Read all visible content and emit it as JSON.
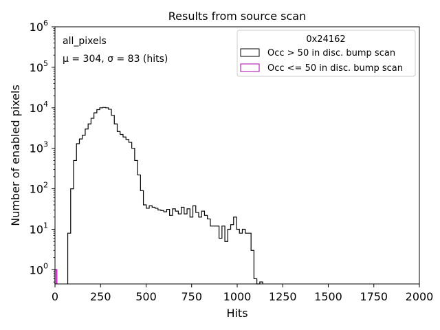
{
  "chart_data": {
    "type": "histogram",
    "title": "Results from source scan",
    "xlabel": "Hits",
    "ylabel": "Number of enabled pixels",
    "xlim": [
      0,
      2000
    ],
    "ylim_log10": [
      -0.35,
      6
    ],
    "yscale": "log",
    "x_ticks": [
      0,
      250,
      500,
      750,
      1000,
      1250,
      1500,
      1750,
      2000
    ],
    "x_tick_labels": [
      "0",
      "250",
      "500",
      "750",
      "1000",
      "1250",
      "1500",
      "1750",
      "2000"
    ],
    "y_tick_exponents": [
      0,
      1,
      2,
      3,
      4,
      5,
      6
    ],
    "y_tick_base": "10",
    "annotations": {
      "dataset": "all_pixels",
      "stats": "μ = 304, σ = 83 (hits)"
    },
    "legend": {
      "title": "0x24162",
      "position": "top-right",
      "entries": [
        {
          "label": "Occ > 50 in disc. bump scan",
          "color": "#000000"
        },
        {
          "label": "Occ <= 50 in disc. bump scan",
          "color": "#aa00aa"
        }
      ]
    },
    "series": [
      {
        "name": "Occ > 50 in disc. bump scan",
        "color": "#000000",
        "edges": [
          70,
          1140
        ],
        "counts": [
          8,
          100,
          500,
          1300,
          1700,
          2100,
          3000,
          4000,
          5500,
          7500,
          9000,
          10000,
          10200,
          10000,
          9200,
          6500,
          4000,
          2600,
          2200,
          1900,
          1650,
          1400,
          1000,
          500,
          220,
          90,
          40,
          33,
          38,
          35,
          33,
          30,
          29,
          27,
          31,
          22,
          32,
          28,
          24,
          35,
          24,
          32,
          20,
          38,
          26,
          20,
          28,
          22,
          18,
          12,
          12,
          12,
          6,
          12,
          5,
          10,
          13,
          20,
          10,
          8,
          10,
          8,
          8,
          3,
          0.6,
          0.35,
          0.5
        ]
      },
      {
        "name": "Occ <= 50 in disc. bump scan",
        "color": "#aa00aa",
        "bins": [
          {
            "from": 0,
            "to": 10,
            "count": 1
          }
        ]
      }
    ]
  }
}
